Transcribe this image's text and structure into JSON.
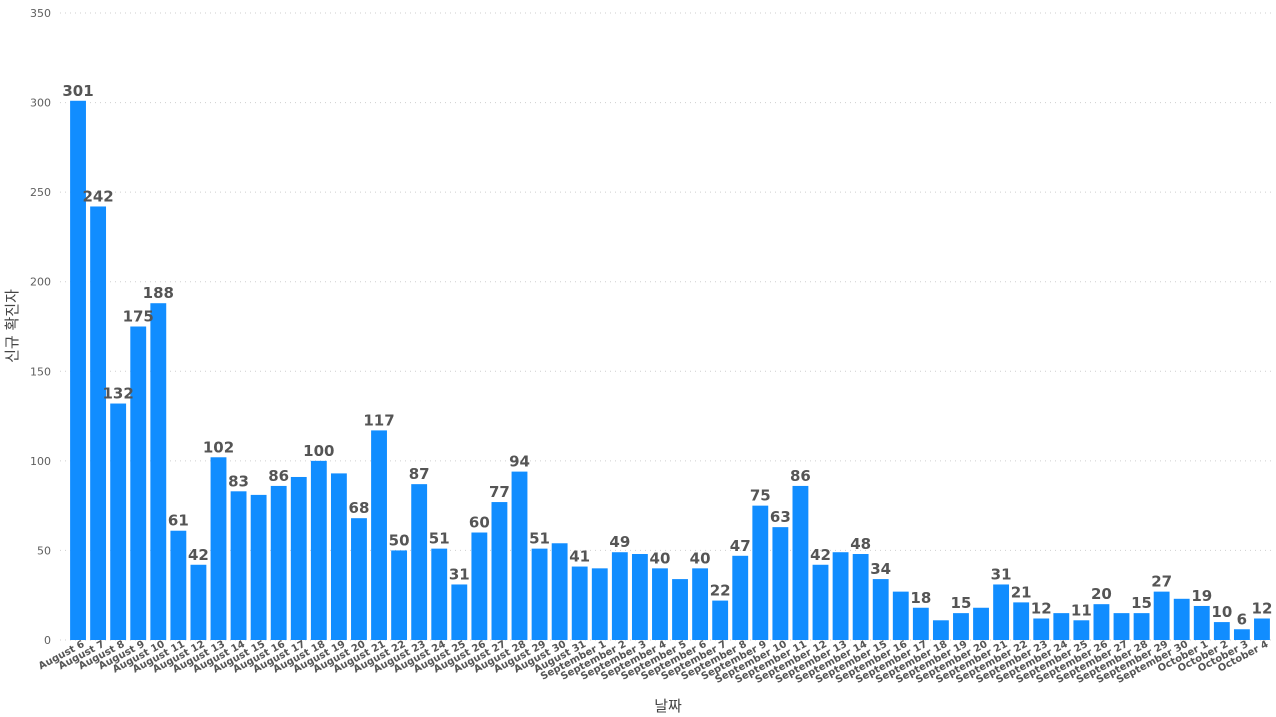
{
  "chart_data": {
    "type": "bar",
    "xlabel": "날짜",
    "ylabel": "신규 확진자",
    "ylim": [
      0,
      350
    ],
    "yticks": [
      0,
      50,
      100,
      150,
      200,
      250,
      300,
      350
    ],
    "grid": true,
    "legend": "none",
    "colors": {
      "bar": "#118DFF"
    },
    "categories": [
      "August 6",
      "August 7",
      "August 8",
      "August 9",
      "August 10",
      "August 11",
      "August 12",
      "August 13",
      "August 14",
      "August 15",
      "August 16",
      "August 17",
      "August 18",
      "August 19",
      "August 20",
      "August 21",
      "August 22",
      "August 23",
      "August 24",
      "August 25",
      "August 26",
      "August 27",
      "August 28",
      "August 29",
      "August 30",
      "August 31",
      "September 1",
      "September 2",
      "September 3",
      "September 4",
      "September 5",
      "September 6",
      "September 7",
      "September 8",
      "September 9",
      "September 10",
      "September 11",
      "September 12",
      "September 13",
      "September 14",
      "September 15",
      "September 16",
      "September 17",
      "September 18",
      "September 19",
      "September 20",
      "September 21",
      "September 22",
      "September 23",
      "September 24",
      "September 25",
      "September 26",
      "September 27",
      "September 28",
      "September 29",
      "September 30",
      "October 1",
      "October 2",
      "October 3",
      "October 4"
    ],
    "values": [
      301,
      242,
      132,
      175,
      188,
      61,
      42,
      102,
      83,
      81,
      86,
      91,
      100,
      93,
      68,
      117,
      50,
      87,
      51,
      31,
      60,
      77,
      94,
      51,
      54,
      41,
      40,
      49,
      48,
      40,
      34,
      40,
      22,
      47,
      75,
      63,
      86,
      42,
      49,
      48,
      34,
      27,
      18,
      11,
      15,
      18,
      31,
      21,
      12,
      15,
      11,
      20,
      15,
      15,
      27,
      23,
      19,
      10,
      6,
      12
    ],
    "data_labels": [
      "301",
      "242",
      "132",
      "175",
      "188",
      "61",
      "42",
      "102",
      "83",
      "",
      "86",
      "",
      "100",
      "",
      "68",
      "117",
      "50",
      "87",
      "51",
      "31",
      "60",
      "77",
      "94",
      "51",
      "",
      "41",
      "",
      "49",
      "",
      "40",
      "",
      "40",
      "22",
      "47",
      "75",
      "63",
      "86",
      "42",
      "",
      "48",
      "34",
      "",
      "18",
      "",
      "15",
      "",
      "31",
      "21",
      "12",
      "",
      "11",
      "20",
      "",
      "15",
      "27",
      "",
      "19",
      "10",
      "6",
      "12"
    ]
  }
}
